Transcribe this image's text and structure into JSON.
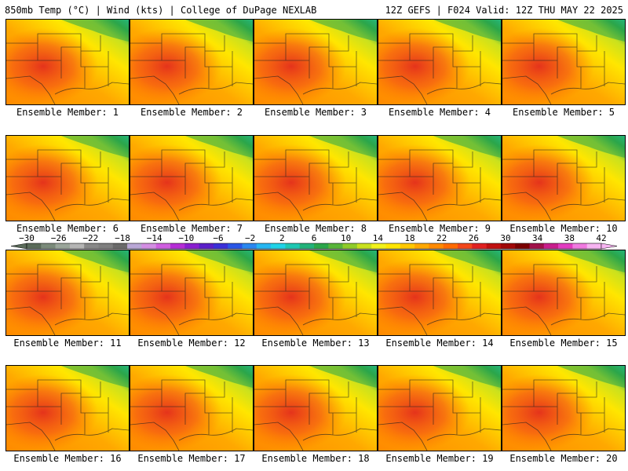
{
  "header": {
    "left": "850mb Temp (°C) | Wind (kts) | College of DuPage NEXLAB",
    "right": "12Z GEFS | F024 Valid: 12Z THU MAY 22 2025"
  },
  "member_label": "Ensemble Member:",
  "members": [
    1,
    2,
    3,
    4,
    5,
    6,
    7,
    8,
    9,
    10,
    11,
    12,
    13,
    14,
    15,
    16,
    17,
    18,
    19,
    20
  ],
  "colorbar": {
    "labels": [
      "−30",
      "−26",
      "−22",
      "−18",
      "−14",
      "−10",
      "−6",
      "−2",
      "2",
      "6",
      "10",
      "14",
      "18",
      "22",
      "26",
      "30",
      "34",
      "38",
      "42"
    ],
    "colors": [
      "#5a6b5a",
      "#7a8a7a",
      "#9aa59a",
      "#b5b5b5",
      "#888888",
      "#7f7f7f",
      "#6a6a6a",
      "#b9a7d6",
      "#d38ee3",
      "#cf5fe0",
      "#b52ed6",
      "#8a1fd0",
      "#5b1fc8",
      "#3b2fd8",
      "#2a56e6",
      "#2a87f0",
      "#26b6f2",
      "#20d3e8",
      "#1ec7b2",
      "#22b27a",
      "#2ba64a",
      "#58b53a",
      "#8fcc2a",
      "#c9e11e",
      "#f2f21a",
      "#ffe600",
      "#ffc800",
      "#ffa800",
      "#ff8a00",
      "#ff6a00",
      "#f2461a",
      "#e02020",
      "#c01010",
      "#a00808",
      "#7a0000",
      "#a0104a",
      "#c81e8c",
      "#e23cc0",
      "#f07ae0",
      "#f7b4f2"
    ]
  }
}
